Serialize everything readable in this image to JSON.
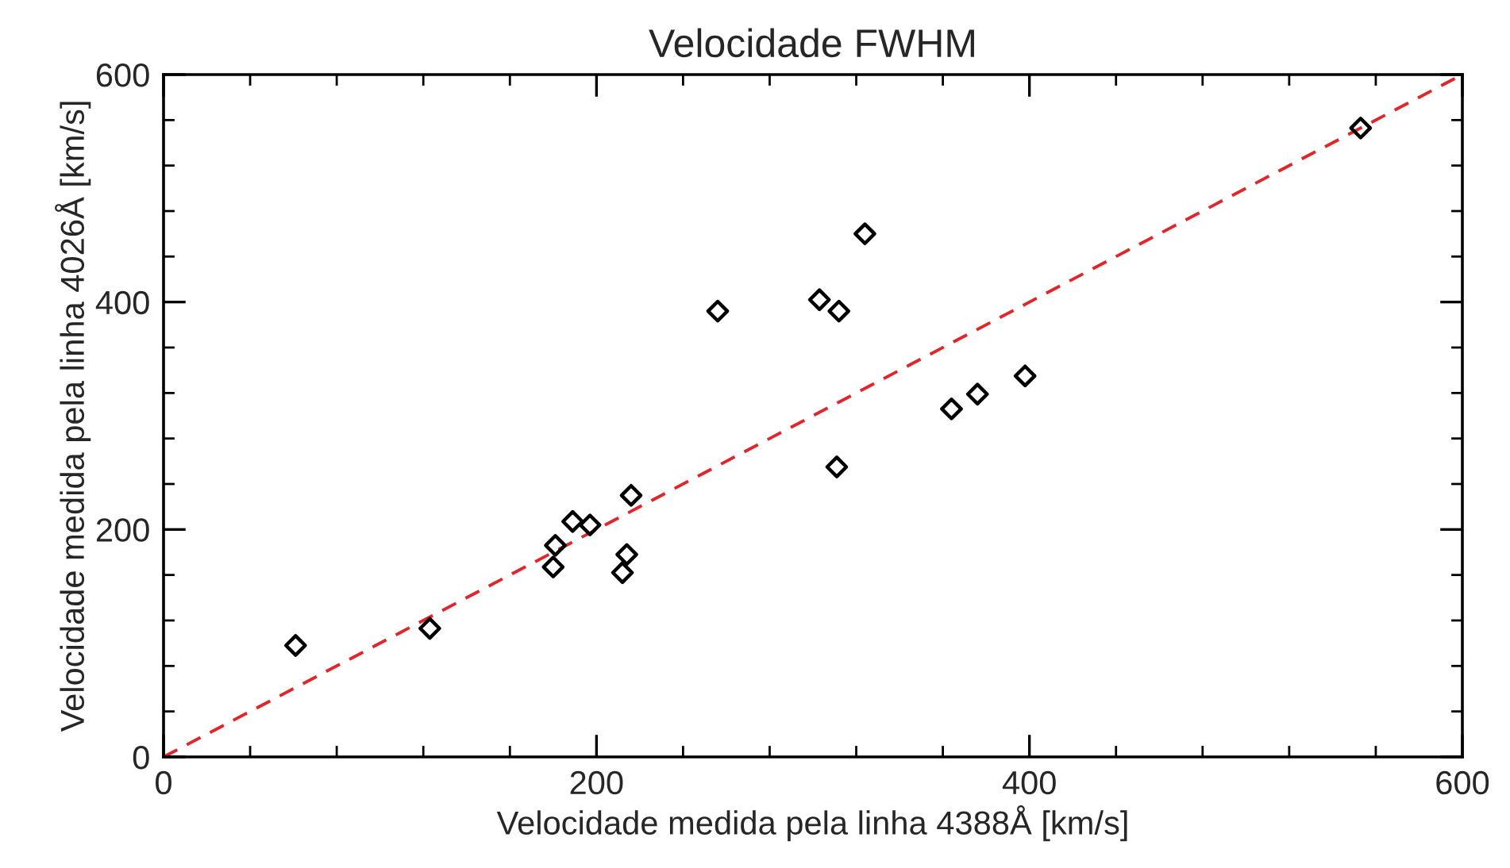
{
  "chart_data": {
    "type": "scatter",
    "title": "Velocidade FWHM",
    "xlabel": "Velocidade medida pela linha 4388Å [km/s]",
    "ylabel": "Velocidade medida pela linha 4026Å [km/s]",
    "series": [
      {
        "color": "#000000",
        "marker": "diamond",
        "x": [
          61,
          123,
          181,
          180,
          189,
          197,
          216,
          214,
          212,
          256,
          303,
          312,
          324,
          311,
          364,
          376,
          398,
          553
        ],
        "values": [
          98,
          113,
          186,
          167,
          207,
          204,
          230,
          178,
          162,
          392,
          402,
          392,
          460,
          255,
          306,
          319,
          335,
          553
        ]
      },
      {
        "type": "line",
        "color": "#e0262a",
        "line_style": "dashed",
        "marker": "none",
        "x": [
          0,
          600
        ],
        "values": [
          0,
          600
        ]
      }
    ],
    "xlim": [
      0,
      600
    ],
    "ylim": [
      0,
      600
    ],
    "xticks": [
      0,
      {
        "value": 40,
        "label": null
      },
      {
        "value": 80,
        "label": null
      },
      {
        "value": 120,
        "label": null
      },
      {
        "value": 160,
        "label": null
      },
      200,
      {
        "value": 240,
        "label": null
      },
      {
        "value": 280,
        "label": null
      },
      {
        "value": 320,
        "label": null
      },
      {
        "value": 360,
        "label": null
      },
      400,
      {
        "value": 440,
        "label": null
      },
      {
        "value": 480,
        "label": null
      },
      {
        "value": 520,
        "label": null
      },
      {
        "value": 560,
        "label": null
      },
      600
    ],
    "yticks": [
      0,
      {
        "value": 40,
        "label": null
      },
      {
        "value": 80,
        "label": null
      },
      {
        "value": 120,
        "label": null
      },
      {
        "value": 160,
        "label": null
      },
      200,
      {
        "value": 240,
        "label": null
      },
      {
        "value": 280,
        "label": null
      },
      {
        "value": 320,
        "label": null
      },
      {
        "value": 360,
        "label": null
      },
      400,
      {
        "value": 440,
        "label": null
      },
      {
        "value": 480,
        "label": null
      },
      {
        "value": 520,
        "label": null
      },
      {
        "value": 560,
        "label": null
      },
      600
    ],
    "grid": false,
    "legend": false
  }
}
